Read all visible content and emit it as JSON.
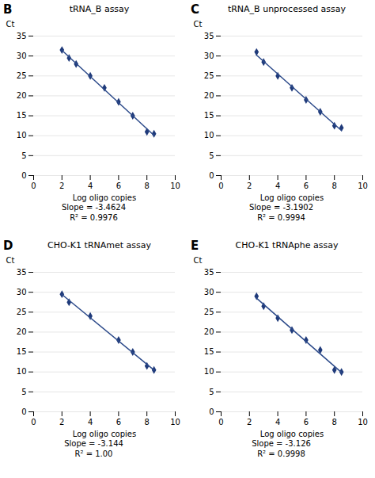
{
  "chart_data": [
    {
      "type": "scatter",
      "title": "tRNA_B assay",
      "x": [
        2.0,
        2.5,
        3.0,
        4.0,
        5.0,
        6.0,
        7.0,
        8.0,
        8.5
      ],
      "series": [
        {
          "type": "scatter",
          "color": "#1f3a7a",
          "marker": "diamond",
          "values": [
            31.5,
            29.5,
            28.0,
            25.0,
            22.0,
            18.5,
            15.0,
            11.0,
            10.5
          ]
        },
        {
          "type": "regression",
          "color": "#2c4a8a",
          "values": [
            31.5,
            29.5,
            28.0,
            25.0,
            22.0,
            18.5,
            15.0,
            11.0,
            10.5
          ]
        }
      ],
      "xlabel": "Log oligo copies",
      "ylabel": "Ct",
      "xlim": [
        0,
        10
      ],
      "ylim": [
        0,
        35
      ],
      "xticks": [
        0,
        2,
        4,
        6,
        8,
        10
      ],
      "yticks": [
        0,
        5,
        10,
        15,
        20,
        25,
        30,
        35
      ],
      "grid": "y",
      "annotations": [
        "B",
        "Slope = -3.4624",
        "R² = 0.9976"
      ]
    },
    {
      "type": "scatter",
      "title": "tRNA_B unprocessed assay",
      "x": [
        2.5,
        3.0,
        4.0,
        5.0,
        6.0,
        7.0,
        8.0,
        8.5
      ],
      "series": [
        {
          "type": "scatter",
          "color": "#1f3a7a",
          "marker": "diamond",
          "values": [
            31.0,
            28.5,
            25.0,
            22.0,
            19.0,
            16.0,
            12.5,
            12.0
          ]
        },
        {
          "type": "regression",
          "color": "#2c4a8a",
          "values": [
            31.0,
            28.5,
            25.0,
            22.0,
            19.0,
            16.0,
            12.5,
            12.0
          ]
        }
      ],
      "xlabel": "Log oligo copies",
      "ylabel": "Ct",
      "xlim": [
        0,
        10
      ],
      "ylim": [
        0,
        35
      ],
      "xticks": [
        0,
        2,
        4,
        6,
        8,
        10
      ],
      "yticks": [
        0,
        5,
        10,
        15,
        20,
        25,
        30,
        35
      ],
      "grid": "y",
      "annotations": [
        "C",
        "Slope = -3.1902",
        "R² = 0.9994"
      ]
    },
    {
      "type": "scatter",
      "title": "CHO-K1 tRNAmet assay",
      "x": [
        2.0,
        2.5,
        4.0,
        6.0,
        7.0,
        8.0,
        8.5
      ],
      "series": [
        {
          "type": "scatter",
          "color": "#1f3a7a",
          "marker": "diamond",
          "values": [
            29.5,
            27.5,
            24.0,
            18.0,
            15.0,
            11.5,
            10.5
          ]
        },
        {
          "type": "regression",
          "color": "#2c4a8a",
          "values": [
            29.5,
            27.5,
            24.0,
            18.0,
            15.0,
            11.5,
            10.5
          ]
        }
      ],
      "xlabel": "Log oligo copies",
      "ylabel": "Ct",
      "xlim": [
        0,
        10
      ],
      "ylim": [
        0,
        35
      ],
      "xticks": [
        0,
        2,
        4,
        6,
        8,
        10
      ],
      "yticks": [
        0,
        5,
        10,
        15,
        20,
        25,
        30,
        35
      ],
      "grid": "y",
      "annotations": [
        "D",
        "Slope = -3.144",
        "R² = 1.00"
      ]
    },
    {
      "type": "scatter",
      "title": "CHO-K1 tRNAphe assay",
      "x": [
        2.5,
        3.0,
        4.0,
        5.0,
        6.0,
        7.0,
        8.0,
        8.5
      ],
      "series": [
        {
          "type": "scatter",
          "color": "#1f3a7a",
          "marker": "diamond",
          "values": [
            29.0,
            26.5,
            23.5,
            20.5,
            18.0,
            15.5,
            10.5,
            10.0
          ]
        },
        {
          "type": "regression",
          "color": "#2c4a8a",
          "values": [
            29.0,
            26.5,
            23.5,
            20.5,
            18.0,
            15.5,
            10.5,
            10.0
          ]
        }
      ],
      "xlabel": "Log oligo copies",
      "ylabel": "Ct",
      "xlim": [
        0,
        10
      ],
      "ylim": [
        0,
        35
      ],
      "xticks": [
        0,
        2,
        4,
        6,
        8,
        10
      ],
      "yticks": [
        0,
        5,
        10,
        15,
        20,
        25,
        30,
        35
      ],
      "grid": "y",
      "annotations": [
        "E",
        "Slope = -3.126",
        "R² = 0.9998"
      ]
    }
  ]
}
